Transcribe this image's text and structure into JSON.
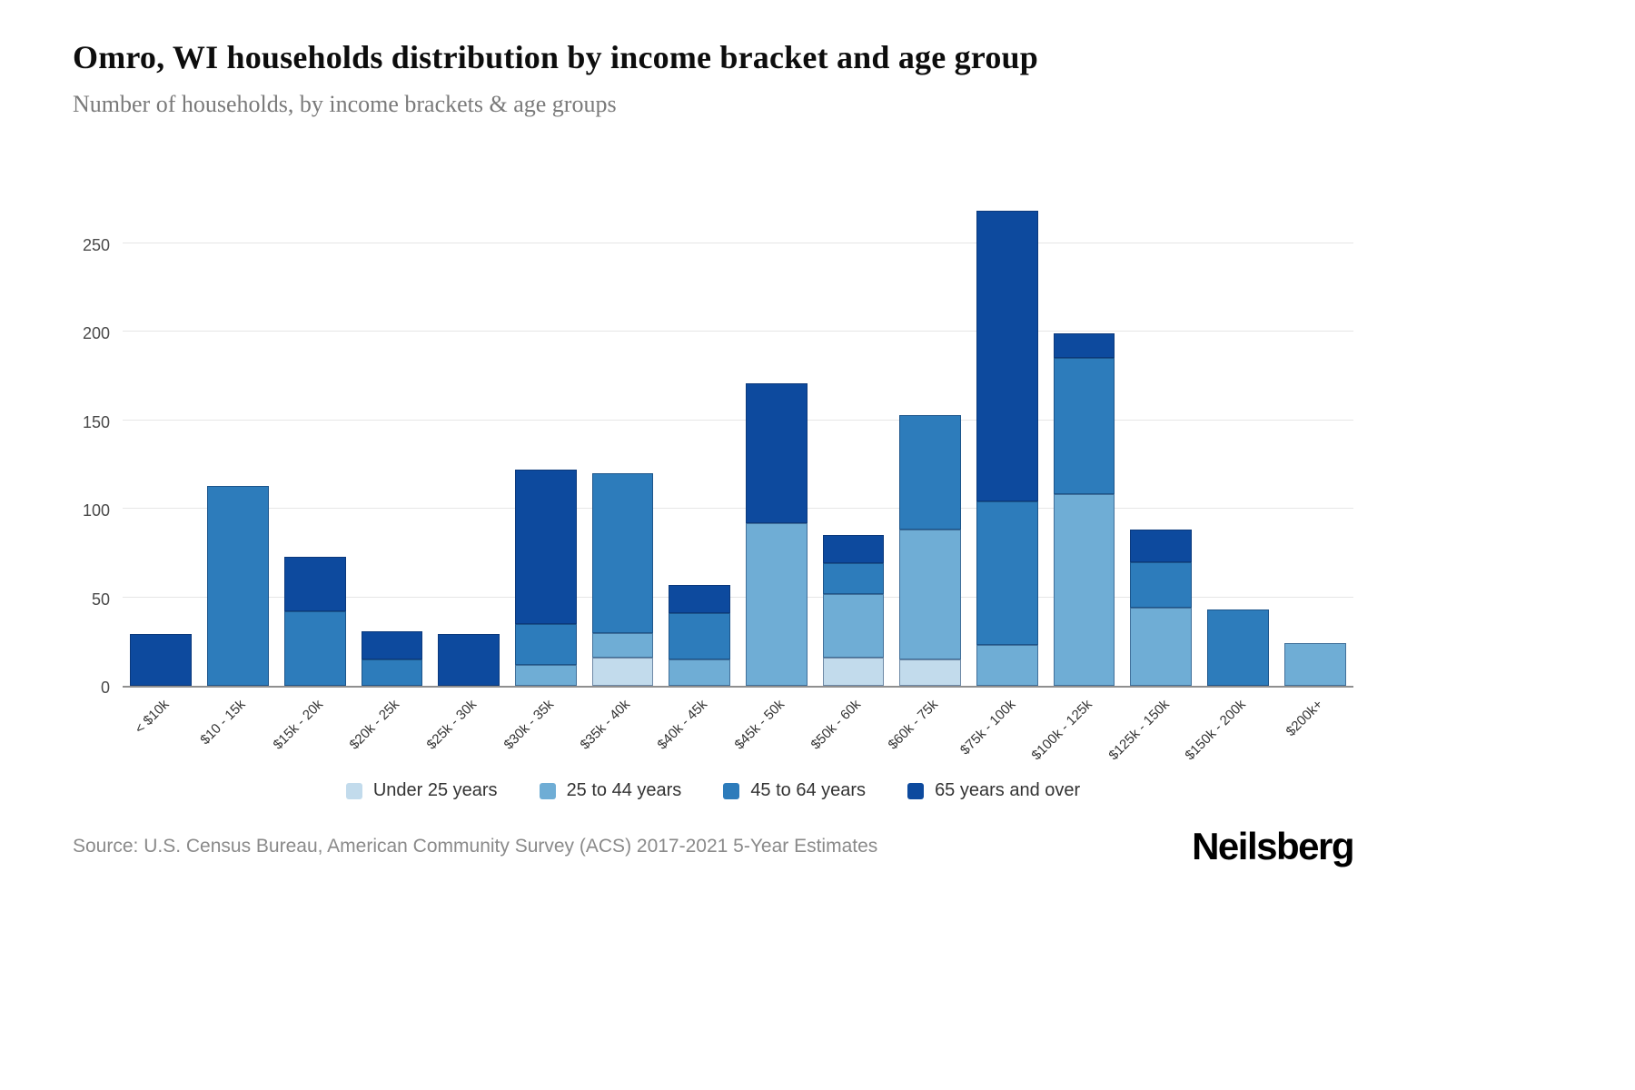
{
  "header": {
    "title": "Omro, WI households distribution by income bracket and age group",
    "subtitle": "Number of households, by income brackets & age groups"
  },
  "footer": {
    "source": "Source: U.S. Census Bureau, American Community Survey (ACS) 2017-2021 5-Year Estimates",
    "brand": "Neilsberg"
  },
  "chart_data": {
    "type": "bar",
    "stacked": true,
    "title": "Omro, WI households distribution by income bracket and age group",
    "xlabel": "",
    "ylabel": "Number of households",
    "ylim": [
      0,
      270
    ],
    "yticks": [
      0,
      50,
      100,
      150,
      200,
      250
    ],
    "grid": true,
    "legend_position": "bottom",
    "categories": [
      "< $10k",
      "$10 - 15k",
      "$15k - 20k",
      "$20k - 25k",
      "$25k - 30k",
      "$30k - 35k",
      "$35k - 40k",
      "$40k - 45k",
      "$45k - 50k",
      "$50k - 60k",
      "$60k - 75k",
      "$75k - 100k",
      "$100k - 125k",
      "$125k - 150k",
      "$150k - 200k",
      "$200k+"
    ],
    "series": [
      {
        "name": "Under 25 years",
        "color": "#c2dbec",
        "values": [
          0,
          0,
          0,
          0,
          0,
          0,
          16,
          0,
          0,
          16,
          15,
          0,
          0,
          0,
          0,
          0
        ]
      },
      {
        "name": "25 to 44 years",
        "color": "#6fadd5",
        "values": [
          0,
          0,
          0,
          0,
          0,
          12,
          14,
          15,
          92,
          36,
          73,
          23,
          108,
          44,
          0,
          24
        ]
      },
      {
        "name": "45 to 64 years",
        "color": "#2d7cbb",
        "values": [
          0,
          113,
          42,
          15,
          0,
          23,
          90,
          26,
          0,
          17,
          65,
          81,
          77,
          26,
          43,
          0
        ]
      },
      {
        "name": "65 years and over",
        "color": "#0d4a9e",
        "values": [
          29,
          0,
          31,
          16,
          29,
          87,
          0,
          16,
          79,
          16,
          0,
          164,
          14,
          18,
          0,
          0
        ]
      }
    ]
  }
}
